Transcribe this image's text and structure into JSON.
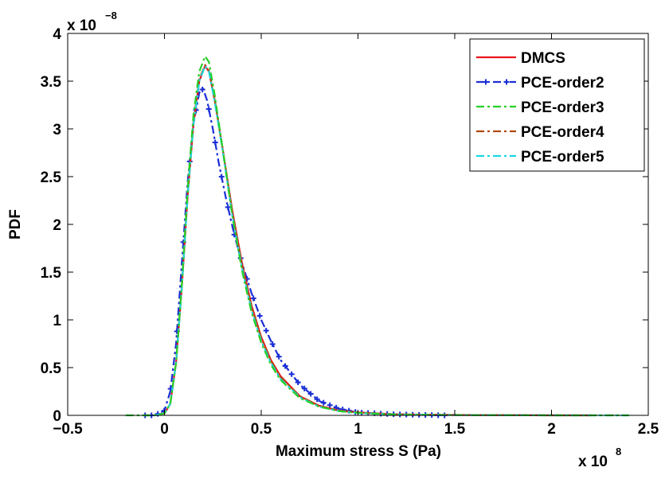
{
  "chart_data": {
    "type": "line",
    "title": "",
    "xlabel": "Maximum stress S (Pa)",
    "ylabel": "PDF",
    "x_multiplier": {
      "base": "x 10",
      "power": "8"
    },
    "y_multiplier": {
      "base": "x 10",
      "power": "−8"
    },
    "xlim": [
      -0.5,
      2.5
    ],
    "ylim": [
      0,
      4
    ],
    "xticks": [
      -0.5,
      0,
      0.5,
      1,
      1.5,
      2,
      2.5
    ],
    "xtick_labels": [
      "−0.5",
      "0",
      "0.5",
      "1",
      "1.5",
      "2",
      "2.5"
    ],
    "yticks": [
      0,
      0.5,
      1,
      1.5,
      2,
      2.5,
      3,
      3.5,
      4
    ],
    "ytick_labels": [
      "0",
      "0.5",
      "1",
      "1.5",
      "2",
      "2.5",
      "3",
      "3.5",
      "4"
    ],
    "grid": false,
    "legend_position": "top-right",
    "series": [
      {
        "name": "DMCS",
        "color": "#e8141c",
        "style": "solid",
        "x": [
          -0.05,
          0.0,
          0.03,
          0.06,
          0.09,
          0.12,
          0.15,
          0.18,
          0.21,
          0.23,
          0.26,
          0.3,
          0.35,
          0.4,
          0.45,
          0.5,
          0.55,
          0.6,
          0.7,
          0.8,
          0.9,
          1.0,
          1.2,
          1.5,
          2.0,
          2.2
        ],
        "y": [
          0,
          0.02,
          0.12,
          0.55,
          1.35,
          2.3,
          3.05,
          3.5,
          3.66,
          3.6,
          3.3,
          2.8,
          2.15,
          1.6,
          1.15,
          0.82,
          0.58,
          0.41,
          0.2,
          0.1,
          0.05,
          0.03,
          0.01,
          0.004,
          0.0,
          0.0
        ]
      },
      {
        "name": "PCE-order2",
        "color": "#1a2ed6",
        "style": "dashdot-plus",
        "x": [
          -0.1,
          -0.05,
          0.0,
          0.03,
          0.06,
          0.09,
          0.12,
          0.15,
          0.18,
          0.2,
          0.22,
          0.25,
          0.28,
          0.32,
          0.36,
          0.4,
          0.45,
          0.5,
          0.55,
          0.6,
          0.7,
          0.8,
          0.9,
          1.0,
          1.2,
          1.45
        ],
        "y": [
          0,
          0.0,
          0.05,
          0.25,
          0.75,
          1.6,
          2.45,
          3.05,
          3.38,
          3.42,
          3.3,
          3.0,
          2.65,
          2.25,
          1.9,
          1.6,
          1.28,
          1.0,
          0.78,
          0.58,
          0.32,
          0.15,
          0.07,
          0.03,
          0.01,
          0.0
        ]
      },
      {
        "name": "PCE-order3",
        "color": "#28d028",
        "style": "dashdot",
        "x": [
          -0.2,
          -0.05,
          0.0,
          0.03,
          0.06,
          0.09,
          0.12,
          0.15,
          0.18,
          0.21,
          0.23,
          0.26,
          0.3,
          0.35,
          0.4,
          0.45,
          0.5,
          0.55,
          0.6,
          0.7,
          0.8,
          0.9,
          1.0,
          1.2,
          1.5,
          2.0,
          2.4
        ],
        "y": [
          0,
          0.0,
          0.02,
          0.12,
          0.55,
          1.38,
          2.38,
          3.15,
          3.6,
          3.76,
          3.7,
          3.35,
          2.8,
          2.1,
          1.52,
          1.08,
          0.76,
          0.53,
          0.37,
          0.18,
          0.09,
          0.045,
          0.025,
          0.008,
          0.003,
          0.0,
          0.0
        ]
      },
      {
        "name": "PCE-order4",
        "color": "#b04a10",
        "style": "dashdot",
        "x": [
          -0.05,
          0.0,
          0.03,
          0.06,
          0.09,
          0.12,
          0.15,
          0.18,
          0.21,
          0.23,
          0.26,
          0.3,
          0.35,
          0.4,
          0.45,
          0.5,
          0.55,
          0.6,
          0.7,
          0.8,
          0.9,
          1.0,
          1.2,
          1.5,
          2.2
        ],
        "y": [
          0,
          0.02,
          0.12,
          0.55,
          1.36,
          2.32,
          3.08,
          3.52,
          3.67,
          3.61,
          3.3,
          2.8,
          2.14,
          1.58,
          1.14,
          0.81,
          0.57,
          0.4,
          0.2,
          0.1,
          0.05,
          0.03,
          0.01,
          0.004,
          0.0
        ]
      },
      {
        "name": "PCE-order5",
        "color": "#18d8e0",
        "style": "dashdot",
        "x": [
          -0.05,
          0.0,
          0.03,
          0.06,
          0.09,
          0.12,
          0.15,
          0.18,
          0.21,
          0.23,
          0.26,
          0.3,
          0.35,
          0.4,
          0.45,
          0.5,
          0.55,
          0.6,
          0.7,
          0.8,
          0.9,
          1.0,
          1.2,
          1.5,
          2.0,
          2.4
        ],
        "y": [
          0,
          0.02,
          0.12,
          0.55,
          1.35,
          2.3,
          3.05,
          3.5,
          3.66,
          3.6,
          3.28,
          2.78,
          2.1,
          1.55,
          1.1,
          0.78,
          0.55,
          0.38,
          0.19,
          0.09,
          0.045,
          0.025,
          0.008,
          0.003,
          0.0,
          0.0
        ]
      }
    ]
  }
}
